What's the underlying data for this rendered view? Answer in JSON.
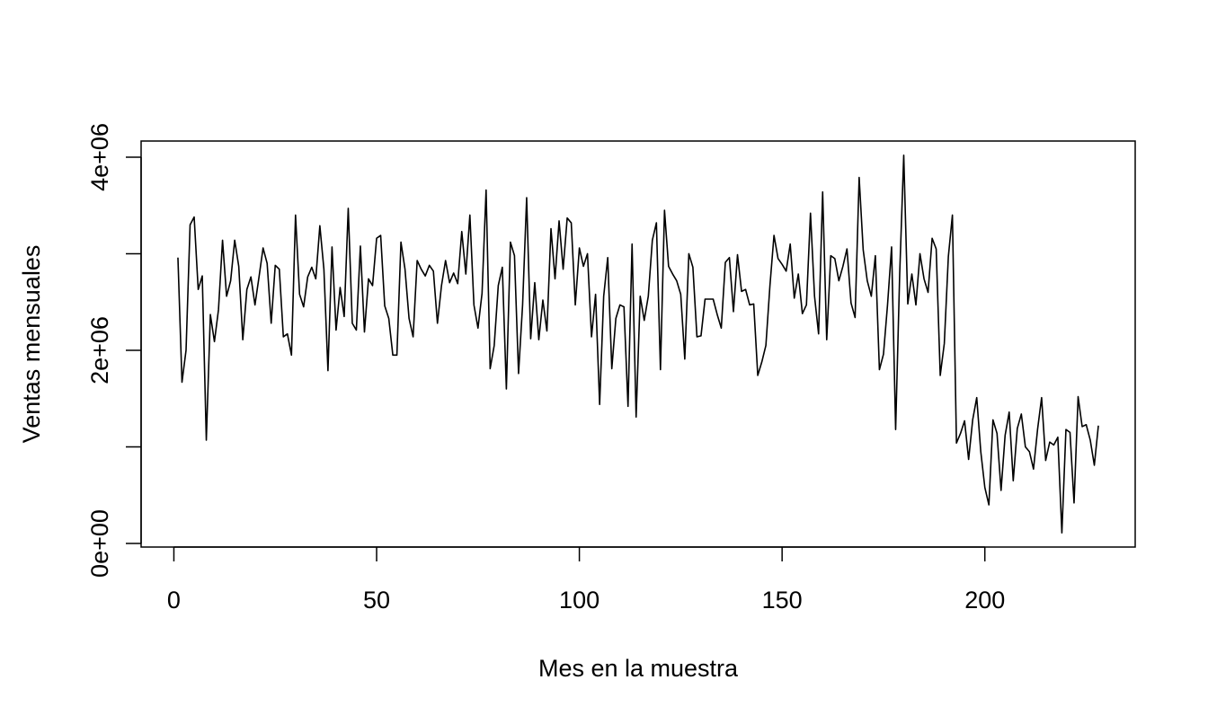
{
  "chart_data": {
    "type": "line",
    "x_label": "Mes en la muestra",
    "y_label": "Ventas mensuales",
    "color": "#000000",
    "x": [
      1,
      2,
      3,
      4,
      5,
      6,
      7,
      8,
      9,
      10,
      11,
      12,
      13,
      14,
      15,
      16,
      17,
      18,
      19,
      20,
      21,
      22,
      23,
      24,
      25,
      26,
      27,
      28,
      29,
      30,
      31,
      32,
      33,
      34,
      35,
      36,
      37,
      38,
      39,
      40,
      41,
      42,
      43,
      44,
      45,
      46,
      47,
      48,
      49,
      50,
      51,
      52,
      53,
      54,
      55,
      56,
      57,
      58,
      59,
      60,
      61,
      62,
      63,
      64,
      65,
      66,
      67,
      68,
      69,
      70,
      71,
      72,
      73,
      74,
      75,
      76,
      77,
      78,
      79,
      80,
      81,
      82,
      83,
      84,
      85,
      86,
      87,
      88,
      89,
      90,
      91,
      92,
      93,
      94,
      95,
      96,
      97,
      98,
      99,
      100,
      101,
      102,
      103,
      104,
      105,
      106,
      107,
      108,
      109,
      110,
      111,
      112,
      113,
      114,
      115,
      116,
      117,
      118,
      119,
      120,
      121,
      122,
      123,
      124,
      125,
      126,
      127,
      128,
      129,
      130,
      131,
      132,
      133,
      134,
      135,
      136,
      137,
      138,
      139,
      140,
      141,
      142,
      143,
      144,
      145,
      146,
      147,
      148,
      149,
      150,
      151,
      152,
      153,
      154,
      155,
      156,
      157,
      158,
      159,
      160,
      161,
      162,
      163,
      164,
      165,
      166,
      167,
      168,
      169,
      170,
      171,
      172,
      173,
      174,
      175,
      176,
      177,
      178,
      179,
      180,
      181,
      182,
      183,
      184,
      185,
      186,
      187,
      188,
      189,
      190,
      191,
      192,
      193,
      194,
      195,
      196,
      197,
      198,
      199,
      200,
      201,
      202,
      203,
      204,
      205,
      206,
      207,
      208,
      209,
      210,
      211,
      212,
      213,
      214,
      215,
      216,
      217,
      218,
      219,
      220,
      221,
      222,
      223,
      224,
      225,
      226,
      227,
      228
    ],
    "values": [
      2960000,
      1670000,
      2000000,
      3300000,
      3380000,
      2630000,
      2770000,
      1070000,
      2370000,
      2090000,
      2420000,
      3140000,
      2560000,
      2720000,
      3140000,
      2870000,
      2110000,
      2630000,
      2760000,
      2470000,
      2760000,
      3060000,
      2900000,
      2280000,
      2880000,
      2840000,
      2140000,
      2170000,
      1950000,
      3400000,
      2580000,
      2450000,
      2760000,
      2860000,
      2740000,
      3290000,
      2840000,
      1790000,
      3070000,
      2210000,
      2650000,
      2350000,
      3470000,
      2280000,
      2210000,
      3080000,
      2190000,
      2740000,
      2670000,
      3160000,
      3190000,
      2460000,
      2330000,
      1950000,
      1950000,
      3120000,
      2840000,
      2330000,
      2140000,
      2930000,
      2840000,
      2770000,
      2880000,
      2820000,
      2280000,
      2670000,
      2930000,
      2700000,
      2800000,
      2690000,
      3230000,
      2790000,
      3400000,
      2470000,
      2230000,
      2590000,
      3660000,
      1810000,
      2050000,
      2670000,
      2860000,
      1600000,
      3120000,
      2980000,
      1760000,
      2470000,
      3580000,
      2120000,
      2700000,
      2110000,
      2520000,
      2200000,
      3260000,
      2740000,
      3340000,
      2840000,
      3370000,
      3320000,
      2470000,
      3060000,
      2870000,
      3000000,
      2140000,
      2580000,
      1440000,
      2560000,
      2960000,
      1810000,
      2330000,
      2470000,
      2450000,
      1420000,
      3100000,
      1310000,
      2560000,
      2310000,
      2560000,
      3140000,
      3320000,
      1800000,
      3450000,
      2870000,
      2790000,
      2720000,
      2580000,
      1910000,
      3000000,
      2860000,
      2140000,
      2150000,
      2530000,
      2530000,
      2530000,
      2370000,
      2230000,
      2910000,
      2960000,
      2400000,
      2990000,
      2610000,
      2630000,
      2470000,
      2480000,
      1740000,
      1880000,
      2050000,
      2670000,
      3190000,
      2950000,
      2890000,
      2820000,
      3100000,
      2540000,
      2790000,
      2380000,
      2470000,
      3420000,
      2560000,
      2170000,
      3640000,
      2110000,
      2980000,
      2950000,
      2720000,
      2870000,
      3050000,
      2490000,
      2340000,
      3790000,
      3040000,
      2720000,
      2560000,
      2980000,
      1800000,
      1960000,
      2470000,
      3070000,
      1180000,
      2790000,
      4020000,
      2480000,
      2790000,
      2470000,
      3000000,
      2740000,
      2600000,
      3160000,
      3050000,
      1740000,
      2070000,
      2970000,
      3400000,
      1040000,
      1140000,
      1270000,
      870000,
      1280000,
      1510000,
      950000,
      580000,
      400000,
      1280000,
      1140000,
      550000,
      1120000,
      1360000,
      650000,
      1190000,
      1340000,
      1000000,
      950000,
      770000,
      1180000,
      1510000,
      860000,
      1050000,
      1020000,
      1100000,
      110000,
      1180000,
      1150000,
      420000,
      1520000,
      1210000,
      1230000,
      1070000,
      810000,
      1220000
    ],
    "xlim": [
      -8.08,
      237.08
    ],
    "xticks": [
      0,
      50,
      100,
      150,
      200
    ],
    "ylim": [
      -37000,
      4167000
    ],
    "yticks": [
      {
        "value": 0,
        "label": "0e+00"
      },
      {
        "value": 2000000,
        "label": "2e+06"
      },
      {
        "value": 4000000,
        "label": "4e+06"
      }
    ],
    "yminor_ticks": [
      1000000,
      3000000
    ],
    "grid": false
  }
}
